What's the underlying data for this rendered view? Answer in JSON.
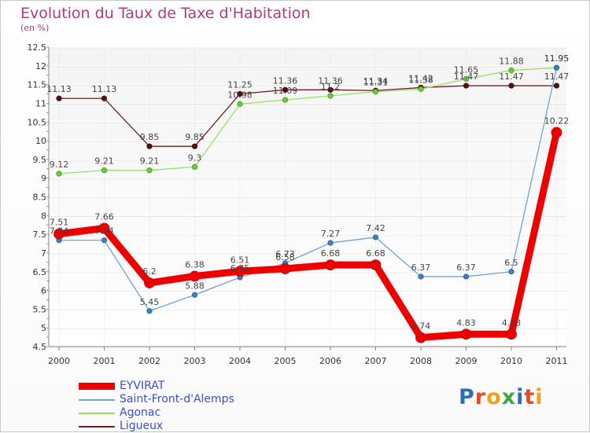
{
  "title": "Evolution du Taux de Taxe d'Habitation",
  "unit_label": "(en %)",
  "brand": {
    "text": "Proxiti",
    "letters": [
      {
        "ch": "P",
        "color": "#2e6db5"
      },
      {
        "ch": "r",
        "color": "#e04b2b"
      },
      {
        "ch": "o",
        "color": "#f0a11c"
      },
      {
        "ch": "x",
        "color": "#3da83d"
      },
      {
        "ch": "i",
        "color": "#2e6db5"
      },
      {
        "ch": "t",
        "color": "#e04b2b"
      },
      {
        "ch": "i",
        "color": "#f0a11c"
      }
    ]
  },
  "chart_data": {
    "type": "line",
    "title": "Evolution du Taux de Taxe d'Habitation",
    "ylabel": "(en %)",
    "xlabel": "",
    "x": [
      "2000",
      "2001",
      "2002",
      "2003",
      "2004",
      "2005",
      "2006",
      "2007",
      "2008",
      "2009",
      "2010",
      "2011"
    ],
    "ylim": [
      4.5,
      12.5
    ],
    "yticks": [
      "4.5",
      "5",
      "5.5",
      "6",
      "6.5",
      "7",
      "7.5",
      "8",
      "8.5",
      "9",
      "9.5",
      "10",
      "10.5",
      "11",
      "11.5",
      "12",
      "12.5"
    ],
    "grid": true,
    "legend_position": "bottom-left",
    "series": [
      {
        "name": "EYVIRAT",
        "color": "#ee0000",
        "values": [
          7.51,
          7.66,
          6.2,
          6.38,
          6.51,
          6.58,
          6.68,
          6.68,
          4.74,
          4.83,
          4.83,
          10.22
        ],
        "labels": [
          "7.51",
          "7.66",
          "6.2",
          "6.38",
          "6.51",
          "6.58",
          "6.68",
          "6.68",
          "4.74",
          "4.83",
          "4.83",
          "10.22"
        ]
      },
      {
        "name": "Saint-Front-d'Alemps",
        "color": "#6ea2d2",
        "values": [
          7.34,
          7.34,
          5.45,
          5.88,
          6.35,
          6.73,
          7.27,
          7.42,
          6.37,
          6.37,
          6.5,
          11.95
        ],
        "labels": [
          "7.34",
          "7.34",
          "5.45",
          "5.88",
          "6.35",
          "6.73",
          "7.27",
          "7.42",
          "6.37",
          "6.37",
          "6.5",
          "11.95"
        ]
      },
      {
        "name": "Agonac",
        "color": "#99dd66",
        "values": [
          9.12,
          9.21,
          9.21,
          9.3,
          10.98,
          11.09,
          11.2,
          11.31,
          11.38,
          11.65,
          11.88,
          11.95
        ],
        "labels": [
          "9.12",
          "9.21",
          "9.21",
          "9.3",
          "10.98",
          "11.09",
          "11.2",
          "11.31",
          "11.38",
          "11.65",
          "11.88",
          "11.95"
        ]
      },
      {
        "name": "Ligueux",
        "color": "#6e1e1e",
        "values": [
          11.13,
          11.13,
          9.85,
          9.85,
          11.25,
          11.36,
          11.36,
          11.34,
          11.42,
          11.47,
          11.47,
          11.47
        ],
        "labels": [
          "11.13",
          "11.13",
          "9.85",
          "9.85",
          "11.25",
          "11.36",
          "11.36",
          "11.34",
          "11.42",
          "11.47",
          "11.47",
          "11.47"
        ]
      }
    ]
  }
}
